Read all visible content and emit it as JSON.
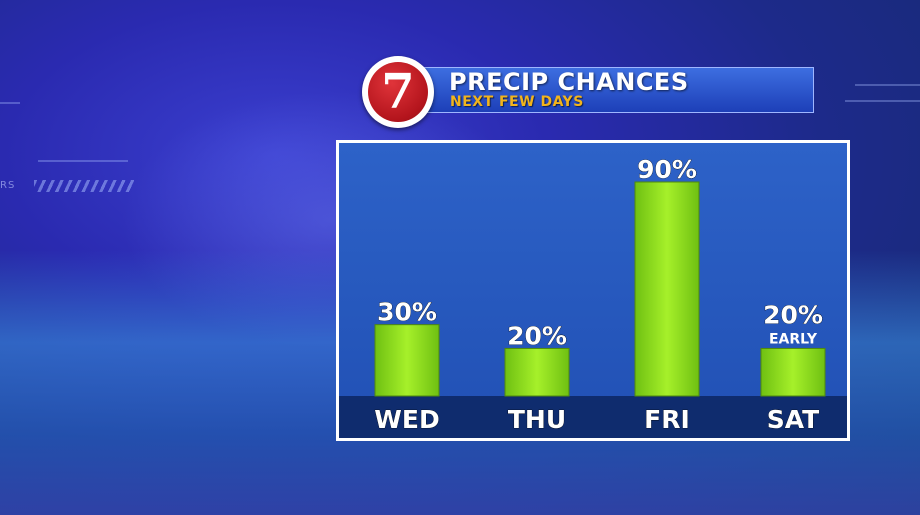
{
  "banner": {
    "logo_text": "7",
    "title": "PRECIP CHANCES",
    "subtitle": "NEXT FEW DAYS",
    "title_color": "#ffffff",
    "subtitle_color": "#f2b41c"
  },
  "background_text": "RS",
  "chart_data": {
    "type": "bar",
    "title": "PRECIP CHANCES",
    "subtitle": "NEXT FEW DAYS",
    "categories": [
      "WED",
      "THU",
      "FRI",
      "SAT"
    ],
    "values": [
      30,
      20,
      90,
      20
    ],
    "value_labels": [
      "30%",
      "20%",
      "90%",
      "20%"
    ],
    "annotations": [
      {
        "category": "SAT",
        "text": "EARLY"
      }
    ],
    "unit": "%",
    "ylim": [
      0,
      90
    ],
    "bar_color": "#8ee01c",
    "grid": false,
    "legend": "none"
  }
}
